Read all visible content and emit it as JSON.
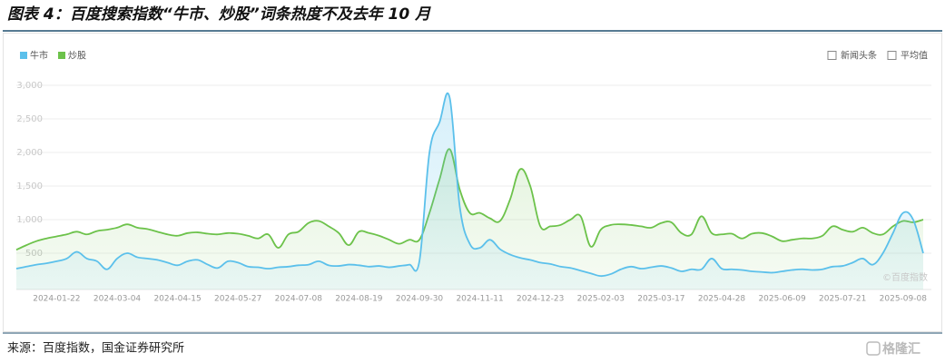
{
  "chart_data": {
    "type": "line",
    "title": "图表 4：百度搜索指数“牛市、炒股”词条热度不及去年 10 月",
    "categories": [
      null,
      null,
      null,
      null,
      "2024-01-22",
      null,
      null,
      null,
      null,
      null,
      "2024-03-04",
      null,
      null,
      null,
      null,
      null,
      "2024-04-15",
      null,
      null,
      null,
      null,
      null,
      "2024-05-27",
      null,
      null,
      null,
      null,
      null,
      "2024-07-08",
      null,
      null,
      null,
      null,
      null,
      "2024-08-19",
      null,
      null,
      null,
      null,
      null,
      "2024-09-30",
      null,
      null,
      null,
      null,
      null,
      "2024-11-11",
      null,
      null,
      null,
      null,
      null,
      "2024-12-23",
      null,
      null,
      null,
      null,
      null,
      "2025-02-03",
      null,
      null,
      null,
      null,
      null,
      "2025-03-17",
      null,
      null,
      null,
      null,
      null,
      "2025-04-28",
      null,
      null,
      null,
      null,
      null,
      "2025-06-09",
      null,
      null,
      null,
      null,
      null,
      "2025-07-21",
      null,
      null,
      null,
      null,
      null,
      "2025-09-08",
      null,
      null
    ],
    "series": [
      {
        "name": "牛市",
        "color": "#5bc0eb",
        "values": [
          270,
          300,
          330,
          350,
          380,
          420,
          520,
          420,
          380,
          260,
          420,
          500,
          440,
          420,
          400,
          360,
          320,
          380,
          400,
          330,
          280,
          380,
          360,
          300,
          290,
          270,
          290,
          300,
          320,
          330,
          380,
          320,
          310,
          330,
          320,
          300,
          310,
          290,
          310,
          330,
          380,
          2000,
          2450,
          2820,
          1200,
          640,
          580,
          700,
          560,
          480,
          430,
          400,
          360,
          340,
          300,
          280,
          240,
          200,
          160,
          190,
          260,
          300,
          270,
          290,
          310,
          280,
          230,
          260,
          260,
          420,
          270,
          260,
          250,
          230,
          220,
          210,
          230,
          250,
          260,
          250,
          260,
          300,
          310,
          360,
          420,
          330,
          500,
          800,
          1100,
          1000,
          500
        ]
      },
      {
        "name": "炒股",
        "color": "#6cc24a",
        "values": [
          550,
          620,
          680,
          720,
          750,
          780,
          820,
          780,
          830,
          850,
          880,
          930,
          880,
          860,
          820,
          780,
          760,
          800,
          810,
          790,
          780,
          800,
          790,
          760,
          720,
          780,
          580,
          780,
          820,
          950,
          980,
          900,
          800,
          620,
          820,
          800,
          760,
          700,
          640,
          700,
          700,
          1100,
          1600,
          2050,
          1450,
          1100,
          1100,
          1020,
          980,
          1300,
          1750,
          1500,
          900,
          900,
          920,
          1000,
          1050,
          600,
          850,
          920,
          930,
          920,
          900,
          880,
          950,
          960,
          800,
          780,
          1050,
          800,
          780,
          790,
          720,
          790,
          800,
          750,
          680,
          700,
          720,
          720,
          760,
          900,
          850,
          820,
          880,
          800,
          780,
          900,
          980,
          960,
          1000
        ]
      }
    ],
    "ylim": [
      0,
      3000
    ],
    "yticks": [
      500,
      {
        "value": 1000,
        "label": "1,000"
      },
      {
        "value": 1500,
        "label": "1,500"
      },
      {
        "value": 2000,
        "label": "2,000"
      },
      {
        "value": 2500,
        "label": "2,500"
      },
      {
        "value": 3000,
        "label": "3,000"
      }
    ],
    "grid": true,
    "legend": "top-left",
    "options": [
      "新闻头条",
      "平均值"
    ],
    "watermark": "©百度指数"
  },
  "source": "来源：百度指数，国金证券研究所",
  "logo": "格隆汇"
}
